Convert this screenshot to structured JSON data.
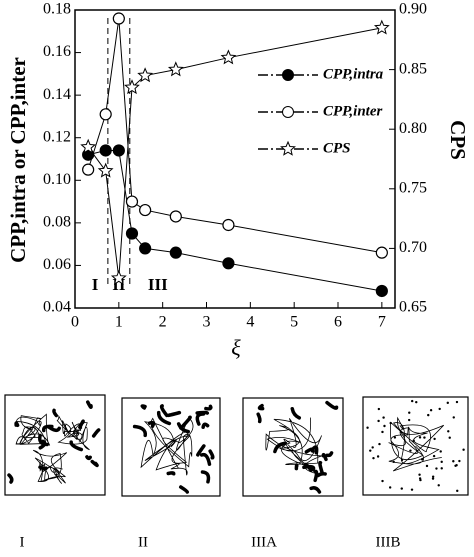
{
  "chart_data": {
    "type": "line",
    "x_label": "ξ",
    "y_label": "CPP,intra or CPP,inter",
    "y2_label": "CPS",
    "x": [
      0.3,
      0.7,
      1.0,
      1.3,
      1.6,
      2.3,
      3.5,
      7.0
    ],
    "series": [
      {
        "name": "CPP,intra",
        "color": "#000000",
        "marker": "filled-circle",
        "values": [
          0.112,
          0.114,
          0.114,
          0.075,
          0.068,
          0.066,
          0.061,
          0.048
        ]
      },
      {
        "name": "CPP,inter",
        "color": "#000000",
        "marker": "open-circle",
        "values": [
          0.105,
          0.131,
          0.176,
          0.09,
          0.086,
          0.083,
          0.079,
          0.066
        ]
      },
      {
        "name": "CPS",
        "color": "#000000",
        "marker": "star",
        "axis": "y2",
        "values": [
          0.785,
          0.765,
          0.675,
          0.835,
          0.845,
          0.85,
          0.86,
          0.885
        ]
      }
    ],
    "xlim": [
      0,
      7.3
    ],
    "xticks": [
      0,
      1,
      2,
      3,
      4,
      5,
      6,
      7
    ],
    "ylim": [
      0.04,
      0.18
    ],
    "yticks": [
      0.04,
      0.06,
      0.08,
      {
        "value": 0.1,
        "label": "0.10"
      },
      0.12,
      0.14,
      0.16,
      0.18
    ],
    "y2lim": [
      0.65,
      0.9
    ],
    "y2ticks": [
      0.65,
      {
        "value": 0.7,
        "label": "0.70"
      },
      0.75,
      {
        "value": 0.8,
        "label": "0.80"
      },
      0.85,
      {
        "value": 0.9,
        "label": "0.90"
      }
    ],
    "region_bounds": [
      0.75,
      1.25
    ],
    "region_labels": [
      "I",
      "II",
      "III"
    ]
  },
  "panels": [
    "I",
    "II",
    "IIIA",
    "IIIB"
  ]
}
